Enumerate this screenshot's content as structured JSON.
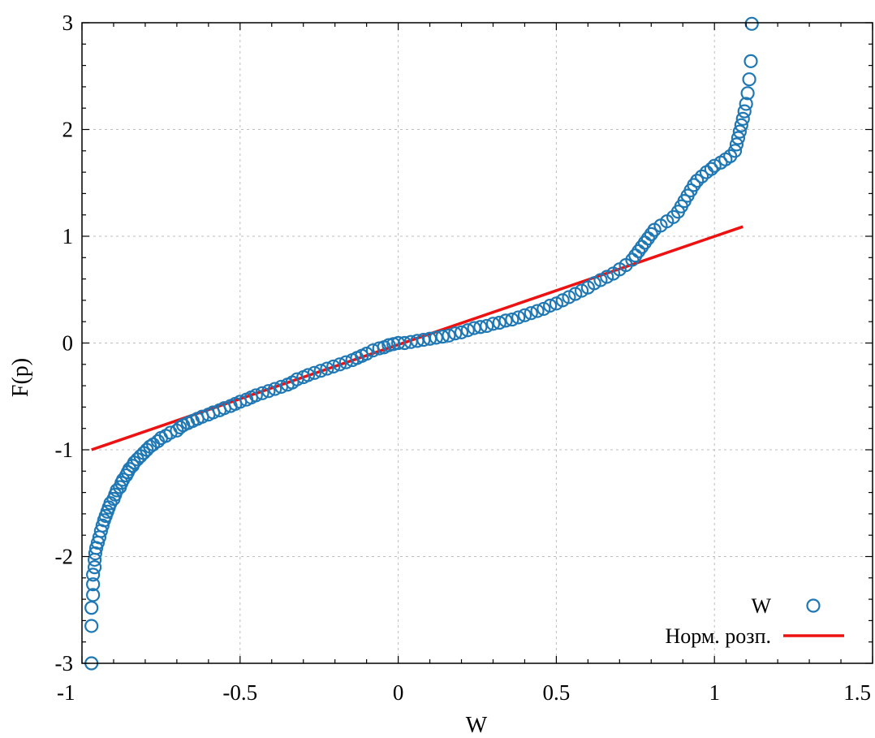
{
  "chart_data": {
    "type": "scatter",
    "xlabel": "W",
    "ylabel": "F(p)",
    "xlim": [
      -1,
      1.5
    ],
    "ylim": [
      -3,
      3
    ],
    "x_ticks": [
      "-1",
      "-0.5",
      "0",
      "0.5",
      "1",
      "1.5"
    ],
    "y_ticks": [
      "-3",
      "-2",
      "-1",
      "0",
      "1",
      "2",
      "3"
    ],
    "grid": true,
    "legend_position": "bottom-right",
    "series": [
      {
        "name": "W",
        "kind": "scatter",
        "marker": "open-circle",
        "color": "#1f78b4",
        "points": [
          [
            -0.97,
            -3.0
          ],
          [
            -0.97,
            -2.65
          ],
          [
            -0.97,
            -2.48
          ],
          [
            -0.965,
            -2.36
          ],
          [
            -0.965,
            -2.26
          ],
          [
            -0.965,
            -2.17
          ],
          [
            -0.96,
            -2.1
          ],
          [
            -0.96,
            -2.03
          ],
          [
            -0.958,
            -1.97
          ],
          [
            -0.955,
            -1.92
          ],
          [
            -0.95,
            -1.87
          ],
          [
            -0.945,
            -1.82
          ],
          [
            -0.94,
            -1.76
          ],
          [
            -0.935,
            -1.71
          ],
          [
            -0.93,
            -1.66
          ],
          [
            -0.925,
            -1.62
          ],
          [
            -0.92,
            -1.58
          ],
          [
            -0.915,
            -1.54
          ],
          [
            -0.91,
            -1.5
          ],
          [
            -0.9,
            -1.46
          ],
          [
            -0.895,
            -1.42
          ],
          [
            -0.89,
            -1.38
          ],
          [
            -0.88,
            -1.35
          ],
          [
            -0.875,
            -1.31
          ],
          [
            -0.87,
            -1.28
          ],
          [
            -0.86,
            -1.24
          ],
          [
            -0.855,
            -1.21
          ],
          [
            -0.85,
            -1.18
          ],
          [
            -0.84,
            -1.15
          ],
          [
            -0.835,
            -1.12
          ],
          [
            -0.825,
            -1.09
          ],
          [
            -0.815,
            -1.06
          ],
          [
            -0.805,
            -1.03
          ],
          [
            -0.795,
            -1.0
          ],
          [
            -0.785,
            -0.97
          ],
          [
            -0.775,
            -0.95
          ],
          [
            -0.76,
            -0.92
          ],
          [
            -0.75,
            -0.89
          ],
          [
            -0.735,
            -0.87
          ],
          [
            -0.72,
            -0.84
          ],
          [
            -0.7,
            -0.82
          ],
          [
            -0.69,
            -0.79
          ],
          [
            -0.68,
            -0.77
          ],
          [
            -0.665,
            -0.75
          ],
          [
            -0.65,
            -0.73
          ],
          [
            -0.635,
            -0.71
          ],
          [
            -0.62,
            -0.69
          ],
          [
            -0.6,
            -0.67
          ],
          [
            -0.585,
            -0.65
          ],
          [
            -0.565,
            -0.63
          ],
          [
            -0.55,
            -0.61
          ],
          [
            -0.53,
            -0.59
          ],
          [
            -0.515,
            -0.57
          ],
          [
            -0.5,
            -0.55
          ],
          [
            -0.48,
            -0.53
          ],
          [
            -0.465,
            -0.51
          ],
          [
            -0.45,
            -0.49
          ],
          [
            -0.43,
            -0.47
          ],
          [
            -0.41,
            -0.45
          ],
          [
            -0.39,
            -0.43
          ],
          [
            -0.37,
            -0.41
          ],
          [
            -0.35,
            -0.39
          ],
          [
            -0.335,
            -0.37
          ],
          [
            -0.32,
            -0.34
          ],
          [
            -0.3,
            -0.32
          ],
          [
            -0.285,
            -0.3
          ],
          [
            -0.265,
            -0.28
          ],
          [
            -0.245,
            -0.26
          ],
          [
            -0.225,
            -0.24
          ],
          [
            -0.205,
            -0.22
          ],
          [
            -0.185,
            -0.2
          ],
          [
            -0.165,
            -0.18
          ],
          [
            -0.145,
            -0.16
          ],
          [
            -0.13,
            -0.14
          ],
          [
            -0.115,
            -0.12
          ],
          [
            -0.1,
            -0.1
          ],
          [
            -0.08,
            -0.07
          ],
          [
            -0.06,
            -0.05
          ],
          [
            -0.045,
            -0.04
          ],
          [
            -0.03,
            -0.02
          ],
          [
            -0.015,
            -0.01
          ],
          [
            0.0,
            0.0
          ],
          [
            0.02,
            0.0
          ],
          [
            0.04,
            0.01
          ],
          [
            0.06,
            0.02
          ],
          [
            0.08,
            0.03
          ],
          [
            0.1,
            0.04
          ],
          [
            0.12,
            0.05
          ],
          [
            0.14,
            0.06
          ],
          [
            0.16,
            0.07
          ],
          [
            0.18,
            0.09
          ],
          [
            0.2,
            0.1
          ],
          [
            0.22,
            0.12
          ],
          [
            0.24,
            0.14
          ],
          [
            0.26,
            0.15
          ],
          [
            0.28,
            0.16
          ],
          [
            0.3,
            0.18
          ],
          [
            0.32,
            0.19
          ],
          [
            0.34,
            0.21
          ],
          [
            0.36,
            0.22
          ],
          [
            0.38,
            0.24
          ],
          [
            0.4,
            0.26
          ],
          [
            0.42,
            0.28
          ],
          [
            0.44,
            0.3
          ],
          [
            0.46,
            0.32
          ],
          [
            0.48,
            0.35
          ],
          [
            0.5,
            0.37
          ],
          [
            0.52,
            0.4
          ],
          [
            0.54,
            0.43
          ],
          [
            0.56,
            0.46
          ],
          [
            0.58,
            0.49
          ],
          [
            0.6,
            0.52
          ],
          [
            0.62,
            0.56
          ],
          [
            0.64,
            0.59
          ],
          [
            0.66,
            0.62
          ],
          [
            0.68,
            0.65
          ],
          [
            0.7,
            0.69
          ],
          [
            0.72,
            0.73
          ],
          [
            0.74,
            0.78
          ],
          [
            0.75,
            0.82
          ],
          [
            0.76,
            0.86
          ],
          [
            0.77,
            0.9
          ],
          [
            0.78,
            0.94
          ],
          [
            0.79,
            0.98
          ],
          [
            0.8,
            1.02
          ],
          [
            0.81,
            1.06
          ],
          [
            0.83,
            1.1
          ],
          [
            0.85,
            1.14
          ],
          [
            0.87,
            1.18
          ],
          [
            0.885,
            1.23
          ],
          [
            0.895,
            1.28
          ],
          [
            0.905,
            1.33
          ],
          [
            0.915,
            1.38
          ],
          [
            0.925,
            1.43
          ],
          [
            0.935,
            1.48
          ],
          [
            0.945,
            1.52
          ],
          [
            0.96,
            1.56
          ],
          [
            0.975,
            1.6
          ],
          [
            0.99,
            1.63
          ],
          [
            1.0,
            1.66
          ],
          [
            1.02,
            1.69
          ],
          [
            1.035,
            1.72
          ],
          [
            1.05,
            1.75
          ],
          [
            1.065,
            1.8
          ],
          [
            1.07,
            1.86
          ],
          [
            1.075,
            1.92
          ],
          [
            1.08,
            1.98
          ],
          [
            1.085,
            2.04
          ],
          [
            1.09,
            2.1
          ],
          [
            1.095,
            2.17
          ],
          [
            1.1,
            2.24
          ],
          [
            1.105,
            2.34
          ],
          [
            1.11,
            2.47
          ],
          [
            1.115,
            2.64
          ],
          [
            1.118,
            2.99
          ]
        ]
      },
      {
        "name": "Норм. розп.",
        "kind": "line",
        "color": "#ee1111",
        "points": [
          [
            -0.97,
            -1.0
          ],
          [
            1.09,
            1.09
          ]
        ]
      }
    ]
  }
}
